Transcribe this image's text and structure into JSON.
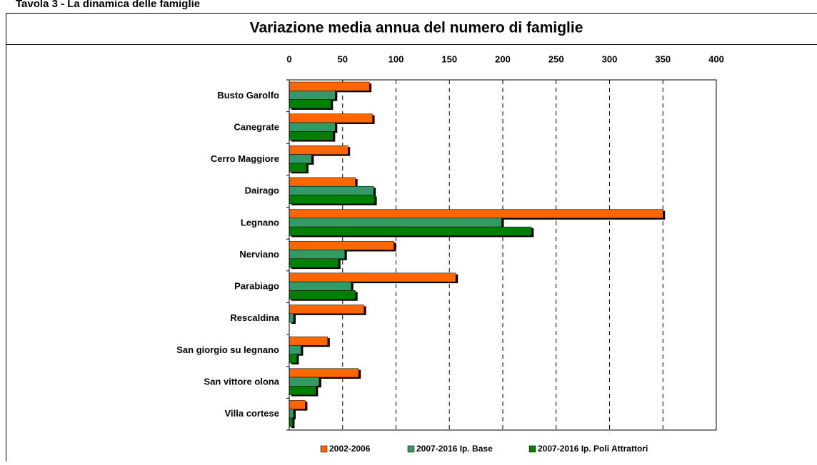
{
  "caption": "Tavola 3 - La dinamica delle famiglie",
  "chart_data": {
    "type": "hbar",
    "title": "Variazione media annua del numero di famiglie",
    "categories": [
      "Busto Garolfo",
      "Canegrate",
      "Cerro Maggiore",
      "Dairago",
      "Legnano",
      "Nerviano",
      "Parabiago",
      "Rescaldina",
      "San giorgio su legnano",
      "San vittore olona",
      "Villa cortese"
    ],
    "series": [
      {
        "name": "2002-2006",
        "color": "#ff6600",
        "values": [
          75,
          78,
          55,
          62,
          350,
          98,
          156,
          70,
          36,
          65,
          15
        ]
      },
      {
        "name": "2007-2016 Ip. Base",
        "color": "#339966",
        "values": [
          43,
          43,
          21,
          79,
          199,
          52,
          58,
          4,
          11,
          28,
          4
        ]
      },
      {
        "name": "2007-2016 Ip. Poli Attrattori",
        "color": "#008000",
        "values": [
          39,
          41,
          16,
          80,
          227,
          46,
          62,
          0,
          7,
          25,
          3
        ]
      }
    ],
    "xlim": [
      0,
      400
    ],
    "xticks": [
      0,
      50,
      100,
      150,
      200,
      250,
      300,
      350,
      400
    ],
    "grid": true
  }
}
